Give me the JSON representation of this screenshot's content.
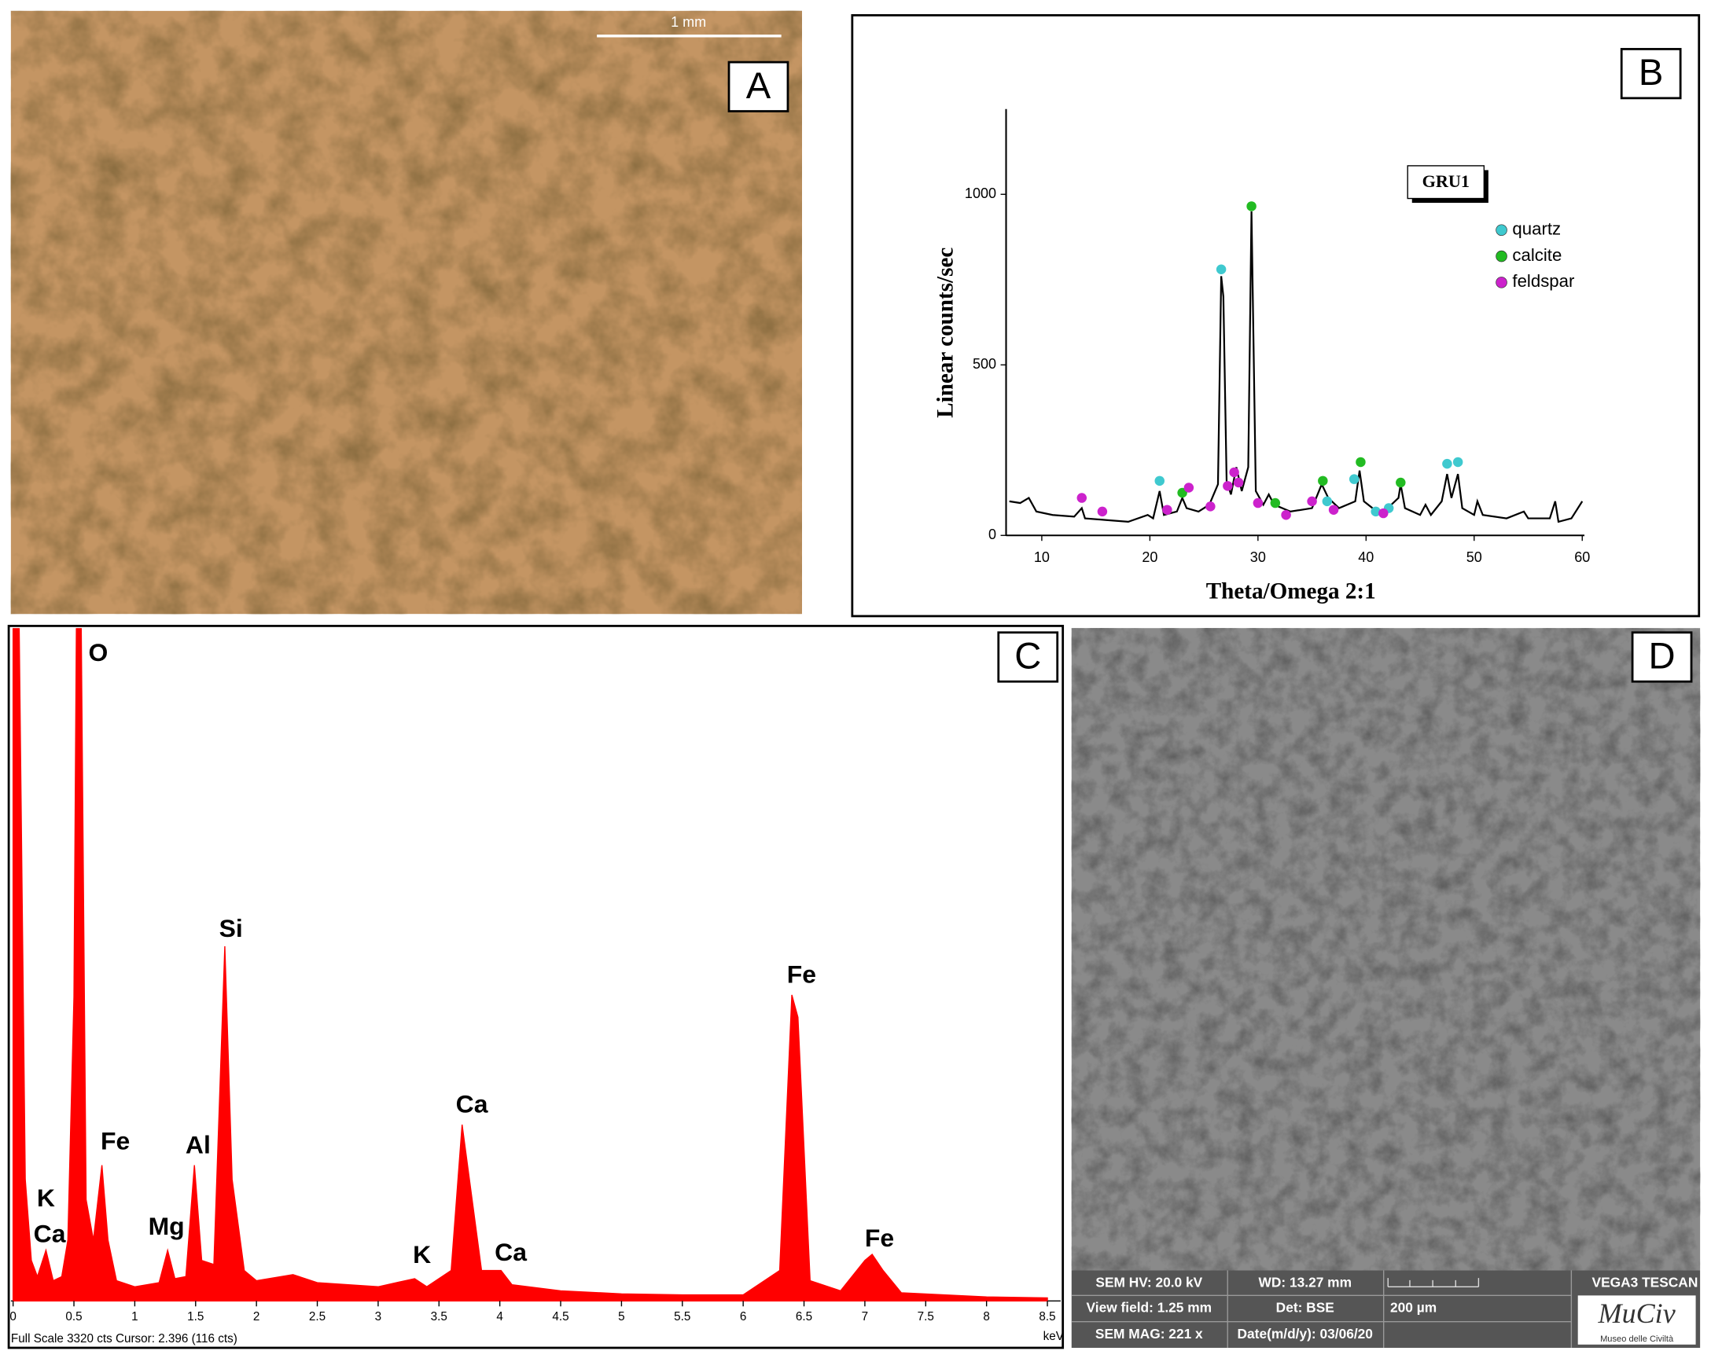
{
  "panels": {
    "a": {
      "label": "A",
      "scale_bar": "1 mm"
    },
    "b": {
      "label": "B",
      "annotation": "GRU1"
    },
    "c": {
      "label": "C"
    },
    "d": {
      "label": "D",
      "info": [
        [
          "SEM HV: 20.0 kV",
          "WD: 13.27 mm",
          "VEGA3 TESCAN"
        ],
        [
          "View field: 1.25 mm",
          "Det: BSE",
          "200 µm"
        ],
        [
          "SEM MAG: 221 x",
          "Date(m/d/y): 03/06/20"
        ]
      ],
      "logo": "MuCiv",
      "logo_sub": "Museo delle Civiltà"
    }
  },
  "chart_data": [
    {
      "type": "line",
      "xlabel": "Theta/Omega 2:1",
      "ylabel": "Linear counts/sec",
      "xlim": [
        7,
        60
      ],
      "ylim": [
        0,
        1250
      ],
      "xticks": [
        10,
        20,
        30,
        40,
        50,
        60
      ],
      "yticks": [
        0,
        500,
        1000
      ],
      "series": [
        {
          "type": "line",
          "color": "#000000",
          "x": [
            7,
            8,
            8.8,
            9.5,
            11,
            13,
            13.7,
            14,
            16,
            18,
            19.8,
            20.3,
            20.9,
            21.3,
            22.5,
            23,
            23.4,
            24.5,
            25.5,
            26.3,
            26.6,
            26.8,
            27.1,
            27.5,
            28,
            28.5,
            29.1,
            29.4,
            29.8,
            30.5,
            31,
            31.5,
            33,
            35,
            35.9,
            36.5,
            37.5,
            39,
            39.4,
            39.8,
            41,
            42,
            43,
            43.2,
            43.6,
            45,
            45.5,
            46,
            47,
            47.5,
            47.9,
            48.5,
            48.9,
            50,
            50.3,
            50.8,
            53,
            54.6,
            55,
            57,
            57.5,
            57.8,
            59,
            60
          ],
          "values": [
            100,
            95,
            110,
            70,
            60,
            55,
            80,
            50,
            45,
            40,
            60,
            50,
            130,
            60,
            70,
            110,
            80,
            70,
            90,
            150,
            760,
            700,
            160,
            120,
            200,
            130,
            200,
            950,
            130,
            90,
            120,
            90,
            70,
            80,
            150,
            110,
            80,
            100,
            190,
            100,
            70,
            80,
            110,
            150,
            80,
            60,
            90,
            60,
            100,
            180,
            110,
            180,
            80,
            60,
            100,
            60,
            50,
            70,
            50,
            50,
            100,
            40,
            50,
            100
          ]
        },
        {
          "type": "scatter",
          "name": "quartz",
          "color": "#3fc9cf",
          "x": [
            20.9,
            26.6,
            36.4,
            38.9,
            40.9,
            42.1,
            47.5,
            48.5
          ],
          "values": [
            160,
            780,
            100,
            165,
            70,
            80,
            210,
            215
          ]
        },
        {
          "type": "scatter",
          "name": "calcite",
          "color": "#22bb22",
          "x": [
            23,
            29.4,
            31.6,
            36,
            39.5,
            43.2
          ],
          "values": [
            125,
            965,
            95,
            160,
            215,
            155
          ]
        },
        {
          "type": "scatter",
          "name": "feldspar",
          "color": "#cc22cc",
          "x": [
            13.7,
            15.6,
            21.6,
            23.6,
            25.6,
            27.2,
            27.8,
            28.2,
            30,
            32.6,
            35,
            37,
            41.6
          ],
          "values": [
            110,
            70,
            75,
            140,
            85,
            145,
            185,
            155,
            95,
            60,
            100,
            75,
            65
          ]
        }
      ]
    },
    {
      "type": "area",
      "color": "#ff0000",
      "xlabel": "keV",
      "footer": "Full Scale 3320 cts Cursor: 2.396 (116 cts)",
      "xlim": [
        0,
        8.6
      ],
      "ylim": [
        0,
        3320
      ],
      "xticks": [
        0,
        0.5,
        1,
        1.5,
        2,
        2.5,
        3,
        3.5,
        4,
        4.5,
        5,
        5.5,
        6,
        6.5,
        7,
        7.5,
        8,
        8.5
      ],
      "x": [
        0,
        0.05,
        0.1,
        0.15,
        0.2,
        0.27,
        0.33,
        0.4,
        0.45,
        0.5,
        0.52,
        0.56,
        0.6,
        0.66,
        0.73,
        0.78,
        0.85,
        1,
        1.1,
        1.2,
        1.27,
        1.33,
        1.42,
        1.49,
        1.55,
        1.65,
        1.74,
        1.8,
        1.9,
        2,
        2.3,
        2.5,
        3,
        3.3,
        3.4,
        3.6,
        3.69,
        3.75,
        3.85,
        4.01,
        4.1,
        4.5,
        5,
        5.5,
        6,
        6.3,
        6.4,
        6.45,
        6.55,
        6.8,
        7,
        7.06,
        7.15,
        7.3,
        8,
        8.5
      ],
      "values": [
        3320,
        3320,
        600,
        200,
        120,
        250,
        100,
        120,
        300,
        1500,
        3320,
        3320,
        500,
        300,
        670,
        300,
        100,
        70,
        80,
        90,
        250,
        110,
        120,
        670,
        200,
        180,
        1750,
        600,
        150,
        100,
        130,
        90,
        70,
        110,
        70,
        150,
        870,
        600,
        150,
        150,
        80,
        50,
        35,
        30,
        30,
        150,
        1510,
        1400,
        100,
        50,
        200,
        230,
        150,
        40,
        20,
        15
      ],
      "annotations": [
        {
          "text": "O",
          "x": 0.7,
          "y": 3190
        },
        {
          "text": "K",
          "x": 0.27,
          "y": 500
        },
        {
          "text": "Ca",
          "x": 0.3,
          "y": 323
        },
        {
          "text": "Fe",
          "x": 0.84,
          "y": 780
        },
        {
          "text": "Mg",
          "x": 1.26,
          "y": 360
        },
        {
          "text": "Al",
          "x": 1.52,
          "y": 760
        },
        {
          "text": "Si",
          "x": 1.79,
          "y": 1830
        },
        {
          "text": "K",
          "x": 3.36,
          "y": 220
        },
        {
          "text": "Ca",
          "x": 3.77,
          "y": 963
        },
        {
          "text": "Ca",
          "x": 4.09,
          "y": 231
        },
        {
          "text": "Fe",
          "x": 6.48,
          "y": 1603
        },
        {
          "text": "Fe",
          "x": 7.12,
          "y": 301
        }
      ]
    }
  ]
}
